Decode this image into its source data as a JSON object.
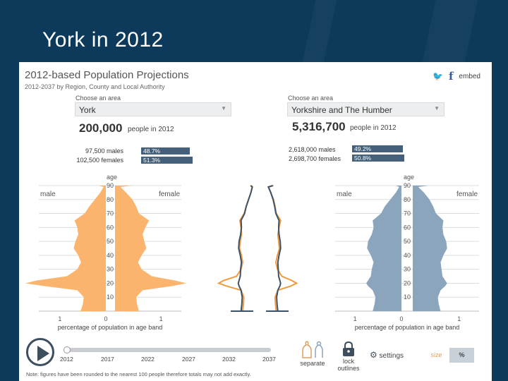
{
  "slide": {
    "title": "York in 2012"
  },
  "app": {
    "title": "2012-based Population Projections",
    "subtitle": "2012-2037 by Region, County and Local Authority",
    "share": {
      "embed_label": "embed",
      "twitter_icon": "twitter-icon",
      "facebook_icon": "facebook-icon"
    }
  },
  "left_area": {
    "choose_label": "Choose an area",
    "selected": "York",
    "total": "200,000",
    "total_suffix": "people in 2012",
    "males_line": "97,500 males",
    "females_line": "102,500 females",
    "male_pct": "48.7%",
    "female_pct": "51.3%"
  },
  "right_area": {
    "choose_label": "Choose an area",
    "selected": "Yorkshire and The Humber",
    "total": "5,316,700",
    "total_suffix": "people in 2012",
    "males_line": "2,618,000 males",
    "females_line": "2,698,700 females",
    "male_pct": "49.2%",
    "female_pct": "50.8%"
  },
  "colors": {
    "left_fill": "#fbb46e",
    "right_fill": "#8ba5bd",
    "left_line": "#f29a3b",
    "right_line": "#3b5268",
    "pct_bar": "#44607a"
  },
  "chart_data": [
    {
      "type": "area",
      "name": "York population pyramid",
      "age_axis_label": "age",
      "male_label": "male",
      "female_label": "female",
      "xlabel": "percentage of population in age band",
      "x_ticks": [
        "1",
        "0",
        "1"
      ],
      "y_ticks": [
        "90",
        "80",
        "70",
        "60",
        "50",
        "40",
        "30",
        "20",
        "10"
      ],
      "ages": [
        0,
        5,
        10,
        15,
        18,
        20,
        22,
        25,
        30,
        35,
        40,
        45,
        50,
        55,
        60,
        65,
        70,
        75,
        80,
        85,
        89,
        90
      ],
      "male": [
        0.55,
        0.5,
        0.48,
        0.62,
        1.35,
        1.75,
        1.5,
        0.85,
        0.62,
        0.54,
        0.6,
        0.7,
        0.66,
        0.6,
        0.62,
        0.68,
        0.46,
        0.36,
        0.24,
        0.12,
        0.05,
        0.16
      ],
      "female": [
        0.52,
        0.48,
        0.46,
        0.6,
        1.25,
        1.55,
        1.3,
        0.8,
        0.58,
        0.5,
        0.58,
        0.68,
        0.64,
        0.6,
        0.66,
        0.74,
        0.52,
        0.46,
        0.38,
        0.24,
        0.12,
        0.38
      ]
    },
    {
      "type": "area",
      "name": "Yorkshire and The Humber population pyramid",
      "age_axis_label": "age",
      "male_label": "male",
      "female_label": "female",
      "xlabel": "percentage of population in age band",
      "x_ticks": [
        "1",
        "0",
        "1"
      ],
      "y_ticks": [
        "90",
        "80",
        "70",
        "60",
        "50",
        "40",
        "30",
        "20",
        "10"
      ],
      "ages": [
        0,
        5,
        10,
        15,
        18,
        20,
        22,
        25,
        30,
        35,
        40,
        45,
        50,
        55,
        60,
        65,
        70,
        75,
        80,
        85,
        89,
        90
      ],
      "male": [
        0.62,
        0.58,
        0.56,
        0.62,
        0.72,
        0.76,
        0.72,
        0.66,
        0.64,
        0.6,
        0.66,
        0.74,
        0.72,
        0.64,
        0.6,
        0.62,
        0.44,
        0.36,
        0.24,
        0.12,
        0.05,
        0.12
      ],
      "female": [
        0.6,
        0.56,
        0.54,
        0.6,
        0.7,
        0.74,
        0.7,
        0.64,
        0.62,
        0.6,
        0.66,
        0.74,
        0.72,
        0.66,
        0.64,
        0.66,
        0.5,
        0.44,
        0.36,
        0.24,
        0.12,
        0.34
      ]
    }
  ],
  "timeline": {
    "years": [
      "2012",
      "2017",
      "2022",
      "2027",
      "2032",
      "2037"
    ],
    "current_year": 2012,
    "play_icon": "play-icon"
  },
  "controls": {
    "separate_label": "separate",
    "lock_label_1": "lock",
    "lock_label_2": "outlines",
    "settings_label": "settings",
    "size_label": "size",
    "percent_label": "%"
  },
  "note": "Note: figures have been rounded to the nearest 100 people therefore totals may not add exactly."
}
